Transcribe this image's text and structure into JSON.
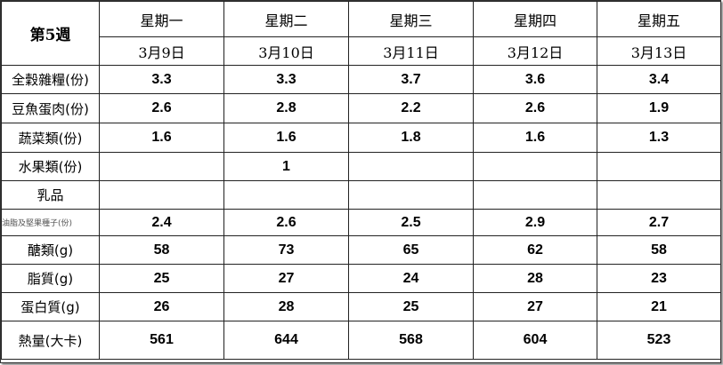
{
  "header": {
    "title": "第5週",
    "days": [
      "星期一",
      "星期二",
      "星期三",
      "星期四",
      "星期五"
    ],
    "dates": [
      "3月9日",
      "3月10日",
      "3月11日",
      "3月12日",
      "3月13日"
    ]
  },
  "table": {
    "rows": [
      {
        "label": "全穀雜糧(份)",
        "cells": [
          "3.3",
          "3.3",
          "3.7",
          "3.6",
          "3.4"
        ]
      },
      {
        "label": "豆魚蛋肉(份)",
        "cells": [
          "2.6",
          "2.8",
          "2.2",
          "2.6",
          "1.9"
        ]
      },
      {
        "label": "蔬菜類(份)",
        "cells": [
          "1.6",
          "1.6",
          "1.8",
          "1.6",
          "1.3"
        ]
      },
      {
        "label": "水果類(份)",
        "cells": [
          null,
          "1",
          null,
          null,
          null
        ]
      },
      {
        "label": "乳品",
        "cells": [
          null,
          null,
          null,
          null,
          null
        ]
      },
      {
        "label": "油脂及堅果種子(份)",
        "cells": [
          "2.4",
          "2.6",
          "2.5",
          "2.9",
          "2.7"
        ]
      },
      {
        "label": "醣類(g)",
        "cells": [
          "58",
          "73",
          "65",
          "62",
          "58"
        ]
      },
      {
        "label": "脂質(g)",
        "cells": [
          "25",
          "27",
          "24",
          "28",
          "23"
        ]
      },
      {
        "label": "蛋白質(g)",
        "cells": [
          "26",
          "28",
          "25",
          "27",
          "21"
        ]
      },
      {
        "label": "熱量(大卡)",
        "cells": [
          "561",
          "644",
          "568",
          "604",
          "523"
        ]
      }
    ]
  }
}
